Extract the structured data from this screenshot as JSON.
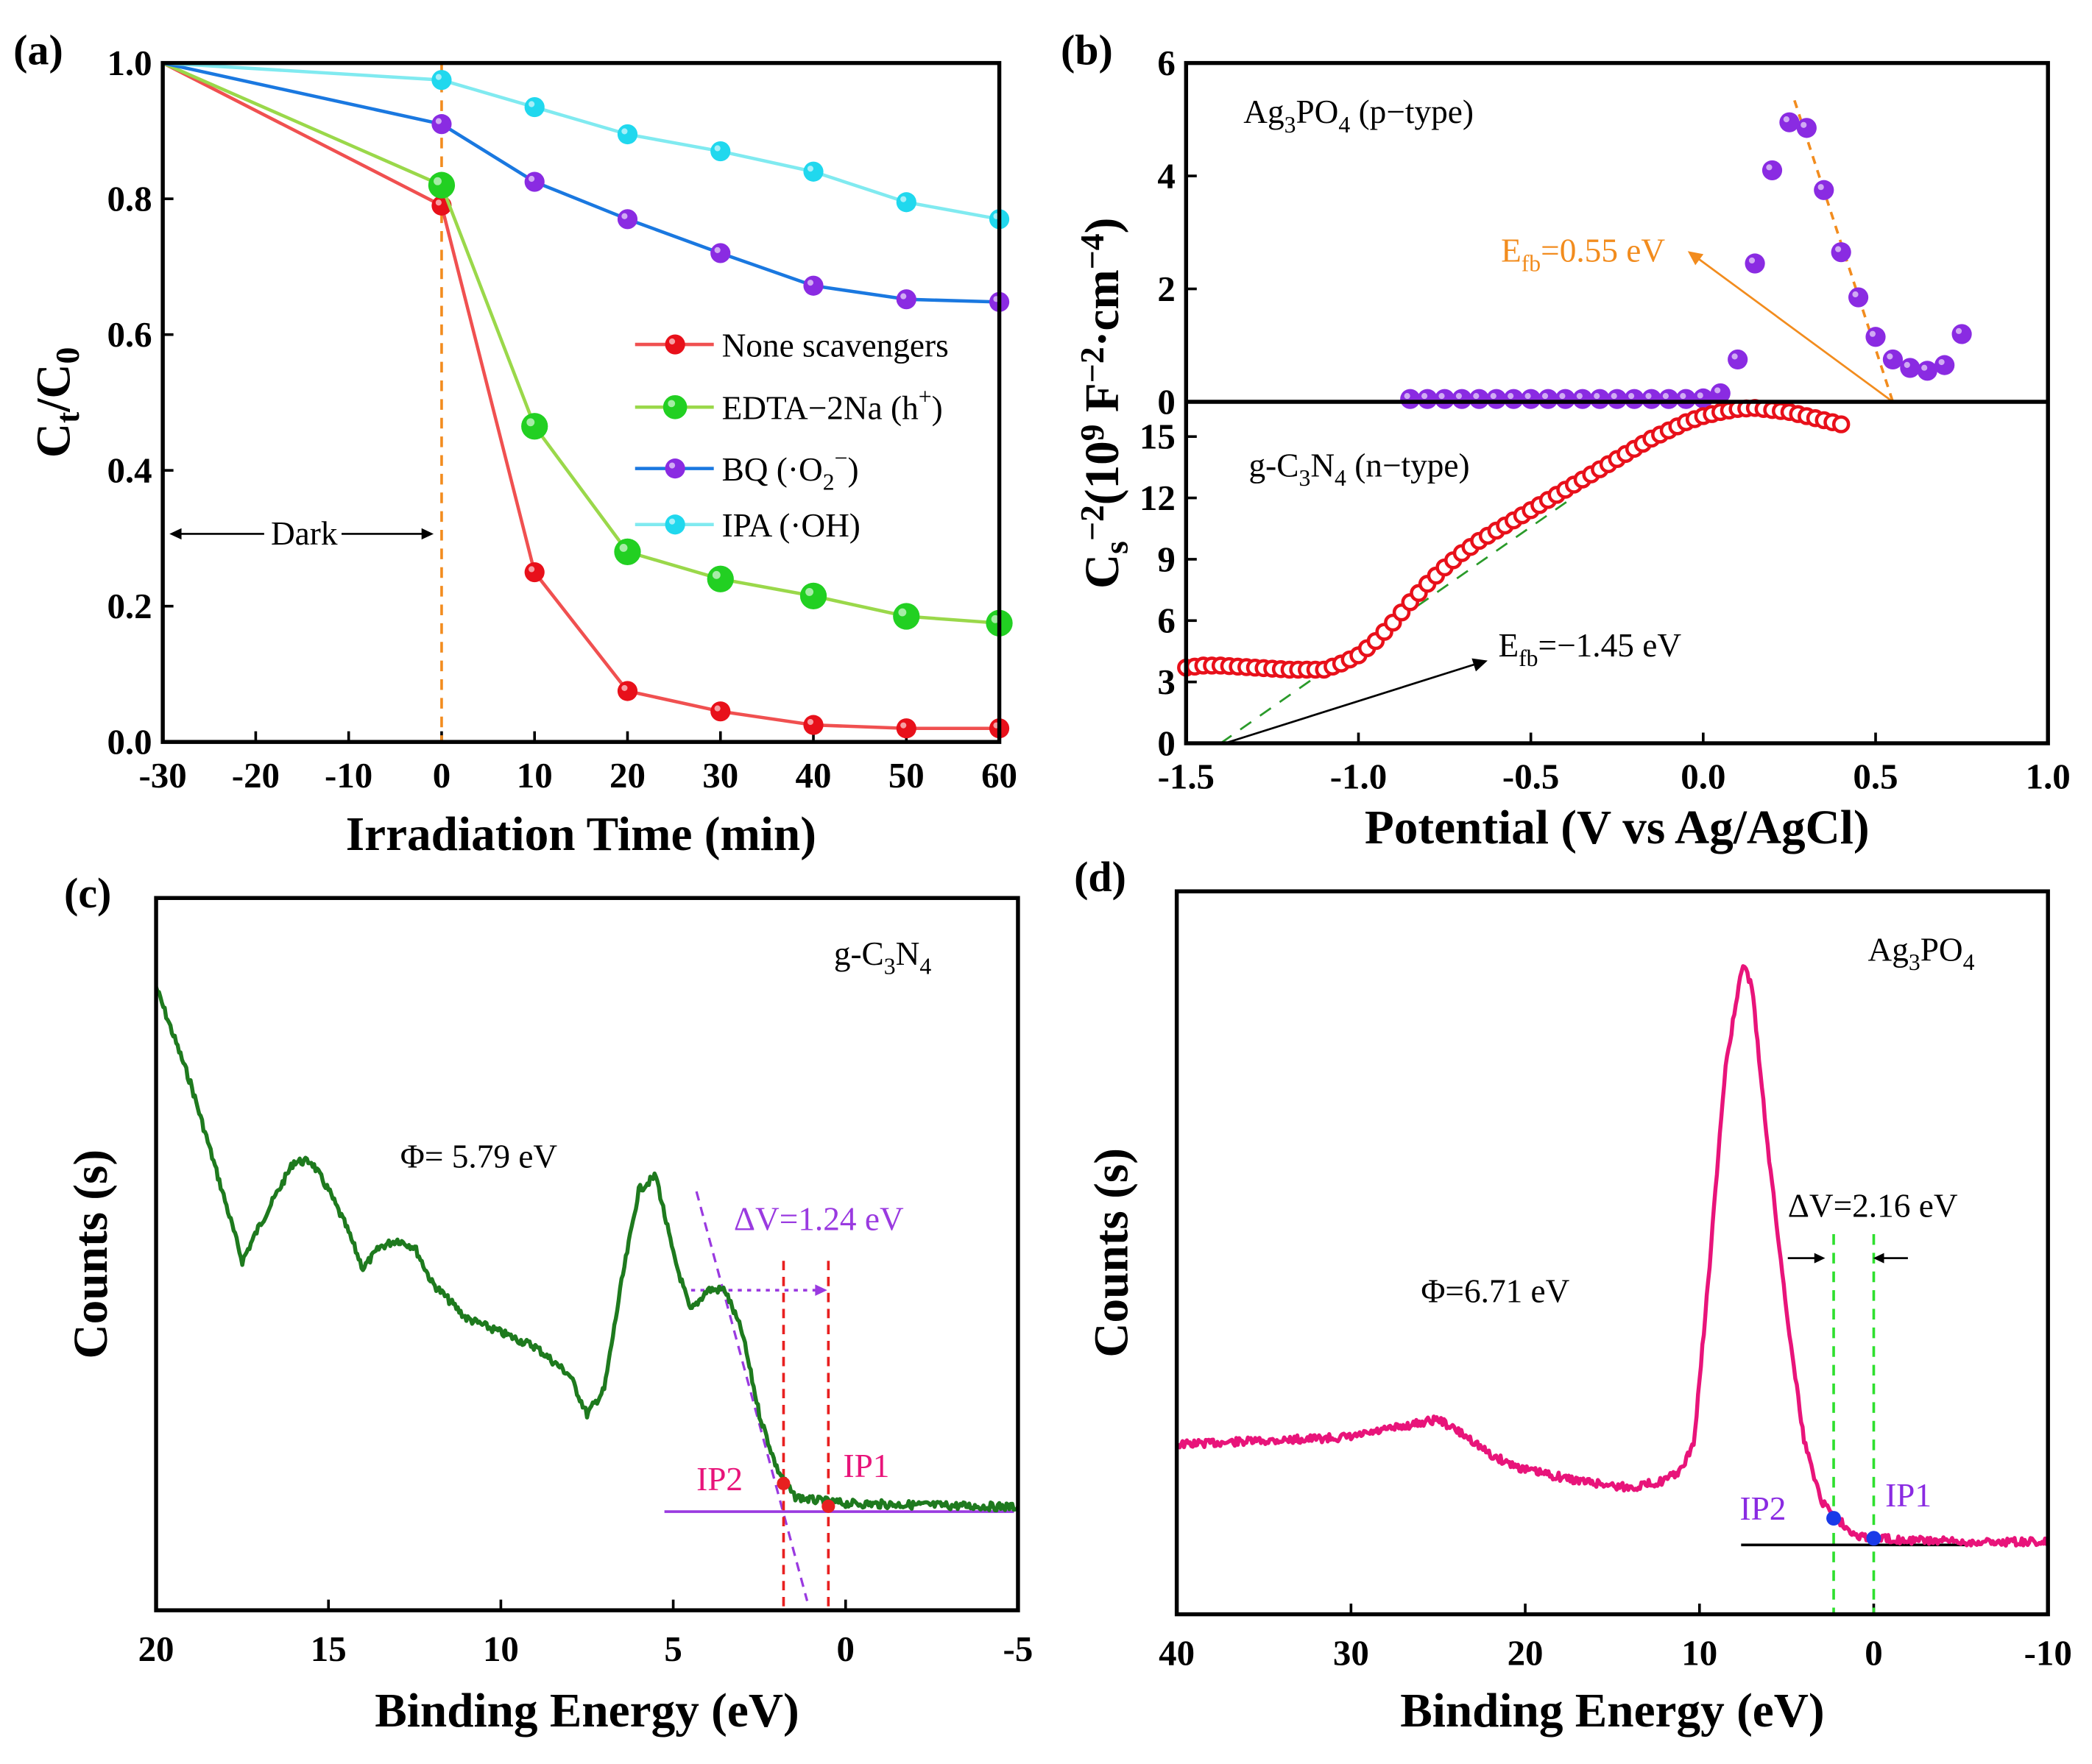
{
  "chart_data": [
    {
      "panel": "(a)",
      "type": "line",
      "xlabel": "Irradiation Time (min)",
      "ylabel": "C_{t}/C_{0}",
      "xlim": [
        -30,
        60
      ],
      "ylim": [
        0,
        1.0
      ],
      "xticks": [
        -30,
        -20,
        -10,
        0,
        10,
        20,
        30,
        40,
        50,
        60
      ],
      "yticks": [
        0.0,
        0.2,
        0.4,
        0.6,
        0.8,
        1.0
      ],
      "x": [
        -30,
        0,
        10,
        20,
        30,
        40,
        50,
        60
      ],
      "series": [
        {
          "name": "None scavengers",
          "line": "#f05050",
          "marker": "#e8101a",
          "values": [
            1.0,
            0.79,
            0.25,
            0.075,
            0.045,
            0.025,
            0.02,
            0.02
          ]
        },
        {
          "name": "EDTA−2Na (h^{+})",
          "line": "#9ad84a",
          "marker": "#22d022",
          "values": [
            1.0,
            0.82,
            0.465,
            0.28,
            0.24,
            0.215,
            0.185,
            0.175
          ]
        },
        {
          "name": "BQ (·O_{2}^{−})",
          "line": "#1a78e0",
          "marker": "#8a2be2",
          "values": [
            1.0,
            0.91,
            0.825,
            0.77,
            0.72,
            0.672,
            0.652,
            0.648
          ]
        },
        {
          "name": "IPA (·OH)",
          "line": "#80eaf0",
          "marker": "#20d8ee",
          "values": [
            1.0,
            0.975,
            0.935,
            0.895,
            0.87,
            0.84,
            0.795,
            0.77
          ]
        }
      ],
      "legend": "center-right",
      "annotations": {
        "dark": "Dark",
        "light_on_x": 0
      }
    },
    {
      "panel": "(b)",
      "type": "scatter",
      "xlabel": "Potential (V vs Ag/AgCl)",
      "ylabel": "C_{s}^{−2}(10^{9} F^{−2}·cm^{−4})",
      "xlim": [
        -1.5,
        1.0
      ],
      "xticks": [
        "-1.5",
        "-1.0",
        "-0.5",
        "0.0",
        "0.5",
        "1.0"
      ],
      "top": {
        "label": "Ag_{3}PO_{4} (p−type)",
        "ylim": [
          0,
          6
        ],
        "yticks": [
          0,
          2,
          4,
          6
        ],
        "color": "#8a2be2",
        "x": [
          -0.85,
          -0.8,
          -0.75,
          -0.7,
          -0.65,
          -0.6,
          -0.55,
          -0.5,
          -0.45,
          -0.4,
          -0.35,
          -0.3,
          -0.25,
          -0.2,
          -0.15,
          -0.1,
          -0.05,
          0.0,
          0.05,
          0.1,
          0.15,
          0.2,
          0.25,
          0.3,
          0.35,
          0.4,
          0.45,
          0.5,
          0.55,
          0.6,
          0.65,
          0.7,
          0.75
        ],
        "y": [
          0.05,
          0.05,
          0.05,
          0.05,
          0.05,
          0.05,
          0.05,
          0.05,
          0.05,
          0.05,
          0.05,
          0.05,
          0.05,
          0.05,
          0.05,
          0.05,
          0.05,
          0.06,
          0.15,
          0.75,
          2.45,
          4.1,
          4.95,
          4.85,
          3.75,
          2.65,
          1.85,
          1.15,
          0.75,
          0.6,
          0.55,
          0.65,
          1.2
        ],
        "efb_label": "E_{fb}=0.55 eV",
        "efb": 0.55,
        "annot_color": "#f28c1e"
      },
      "bottom": {
        "label": "g-C_{3}N_{4} (n−type)",
        "ylim": [
          0,
          16.7
        ],
        "yticks": [
          0,
          3,
          6,
          9,
          12,
          15
        ],
        "color": "#e8101a",
        "x": [
          -1.5,
          -1.45,
          -1.4,
          -1.35,
          -1.3,
          -1.25,
          -1.2,
          -1.15,
          -1.1,
          -1.05,
          -1.0,
          -0.95,
          -0.9,
          -0.85,
          -0.8,
          -0.75,
          -0.7,
          -0.65,
          -0.6,
          -0.55,
          -0.5,
          -0.45,
          -0.4,
          -0.35,
          -0.3,
          -0.25,
          -0.2,
          -0.15,
          -0.1,
          -0.05,
          0.0,
          0.05,
          0.1,
          0.15,
          0.2,
          0.25,
          0.3,
          0.35,
          0.4
        ],
        "y": [
          3.7,
          3.8,
          3.8,
          3.75,
          3.7,
          3.65,
          3.6,
          3.6,
          3.6,
          3.9,
          4.3,
          5.0,
          5.9,
          6.9,
          7.8,
          8.6,
          9.3,
          9.9,
          10.4,
          10.9,
          11.4,
          11.9,
          12.4,
          12.9,
          13.4,
          13.9,
          14.4,
          14.9,
          15.3,
          15.7,
          16.0,
          16.2,
          16.35,
          16.4,
          16.3,
          16.2,
          16.0,
          15.8,
          15.6
        ],
        "efb_label": "E_{fb}=−1.45 eV",
        "efb": -1.45
      }
    },
    {
      "panel": "(c)",
      "type": "line",
      "title": "g-C_{3}N_{4}",
      "xlabel": "Binding Energy (eV)",
      "ylabel": "Counts (s)",
      "xlim": [
        20,
        -5
      ],
      "ylim": [
        0,
        1
      ],
      "xticks": [
        20,
        15,
        10,
        5,
        0,
        -5
      ],
      "color": "#1e7a1e",
      "x": [
        20,
        19,
        18,
        17.5,
        17,
        16,
        15.5,
        15,
        14.5,
        14,
        13.5,
        13,
        12.5,
        12,
        11,
        10,
        9,
        8,
        7.5,
        7,
        6.5,
        6,
        5.5,
        5,
        4.5,
        4,
        3.5,
        3,
        2.5,
        2,
        1.5,
        1,
        0,
        -5
      ],
      "y": [
        0.875,
        0.74,
        0.575,
        0.49,
        0.54,
        0.63,
        0.63,
        0.59,
        0.54,
        0.48,
        0.51,
        0.52,
        0.51,
        0.46,
        0.41,
        0.39,
        0.37,
        0.33,
        0.275,
        0.31,
        0.46,
        0.59,
        0.61,
        0.5,
        0.42,
        0.45,
        0.45,
        0.39,
        0.275,
        0.2,
        0.16,
        0.155,
        0.15,
        0.145
      ],
      "annotations": {
        "phi": "Φ= 5.79 eV",
        "dv": "ΔV=1.24 eV",
        "ip1": "IP1",
        "ip2": "IP2",
        "ip1_x": 0.5,
        "ip2_x": 1.8
      }
    },
    {
      "panel": "(d)",
      "type": "line",
      "title": "Ag_{3}PO_{4}",
      "xlabel": "Binding Energy (eV)",
      "ylabel": "Counts (s)",
      "xlim": [
        40,
        -10
      ],
      "ylim": [
        0,
        1
      ],
      "xticks": [
        40,
        30,
        20,
        10,
        0,
        -10
      ],
      "color": "#e8147a",
      "x": [
        40,
        35,
        30,
        27,
        25,
        23,
        22,
        20,
        17,
        14,
        12,
        11,
        10.3,
        9.5,
        8.5,
        7.5,
        7,
        6,
        5,
        4,
        3,
        2,
        1,
        0,
        -5
      ],
      "y": [
        0.235,
        0.24,
        0.245,
        0.26,
        0.27,
        0.24,
        0.22,
        0.2,
        0.185,
        0.175,
        0.185,
        0.2,
        0.24,
        0.46,
        0.76,
        0.9,
        0.87,
        0.63,
        0.42,
        0.24,
        0.157,
        0.13,
        0.11,
        0.105,
        0.1
      ],
      "annotations": {
        "phi": "Φ=6.71 eV",
        "dv": "ΔV=2.16 eV",
        "ip1": "IP1",
        "ip2": "IP2",
        "ip1_x": 0,
        "ip2_x": 2.3
      }
    }
  ]
}
